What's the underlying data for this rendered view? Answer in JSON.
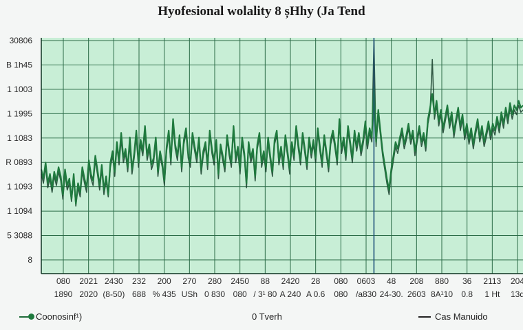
{
  "chart_data": {
    "type": "line",
    "title": "Hyofesional wolality 8 șHhy (Ja Tend",
    "xlabel": "",
    "ylabel": "",
    "y_tick_labels": [
      "30806",
      "B 1h45",
      "1 1003",
      "1 1995",
      "1 1083",
      "R 0893",
      "1 1093",
      "1 1094",
      "5 3088",
      "8"
    ],
    "x_tick_labels_row1": [
      "080",
      "2021",
      "2430",
      "232",
      "200",
      "270",
      "280",
      "2450",
      "88",
      "2420",
      "28",
      "080",
      "0603",
      "48",
      "208",
      "880",
      "36",
      "2113",
      "204"
    ],
    "x_tick_labels_row2": [
      "1890",
      "2020",
      "(8-50)",
      "688",
      "% 435",
      "USh",
      "0 830",
      "080",
      "/ 3¹ 80",
      "A 240",
      "A 0.6",
      "080",
      "/a830",
      "24-30.",
      "2603",
      "8A¹10",
      "0.8",
      "1 Ht",
      "13d"
    ],
    "grid": true,
    "legend_position": "bottom",
    "series": [
      {
        "name": "Coonosinf¹)",
        "color": "#1f7a3e",
        "values": [
          0.44,
          0.4,
          0.47,
          0.38,
          0.42,
          0.36,
          0.43,
          0.39,
          0.45,
          0.41,
          0.33,
          0.44,
          0.37,
          0.4,
          0.31,
          0.42,
          0.29,
          0.38,
          0.34,
          0.45,
          0.4,
          0.36,
          0.48,
          0.42,
          0.39,
          0.5,
          0.44,
          0.37,
          0.46,
          0.35,
          0.41,
          0.33,
          0.47,
          0.52,
          0.43,
          0.56,
          0.48,
          0.6,
          0.49,
          0.53,
          0.45,
          0.58,
          0.44,
          0.51,
          0.61,
          0.47,
          0.57,
          0.52,
          0.63,
          0.5,
          0.55,
          0.46,
          0.49,
          0.58,
          0.43,
          0.52,
          0.47,
          0.39,
          0.54,
          0.61,
          0.48,
          0.66,
          0.55,
          0.5,
          0.59,
          0.45,
          0.57,
          0.62,
          0.51,
          0.47,
          0.6,
          0.54,
          0.49,
          0.58,
          0.44,
          0.52,
          0.56,
          0.46,
          0.61,
          0.53,
          0.48,
          0.57,
          0.42,
          0.55,
          0.5,
          0.45,
          0.59,
          0.52,
          0.47,
          0.63,
          0.49,
          0.54,
          0.44,
          0.58,
          0.51,
          0.38,
          0.56,
          0.49,
          0.53,
          0.41,
          0.55,
          0.6,
          0.47,
          0.52,
          0.45,
          0.58,
          0.5,
          0.43,
          0.57,
          0.61,
          0.48,
          0.54,
          0.46,
          0.59,
          0.52,
          0.44,
          0.56,
          0.5,
          0.63,
          0.55,
          0.48,
          0.6,
          0.53,
          0.46,
          0.58,
          0.51,
          0.57,
          0.49,
          0.62,
          0.54,
          0.47,
          0.59,
          0.52,
          0.45,
          0.57,
          0.61,
          0.55,
          0.48,
          0.66,
          0.53,
          0.58,
          0.5,
          0.63,
          0.56,
          0.49,
          0.61,
          0.54,
          0.6,
          0.52,
          0.57,
          0.65,
          0.55,
          0.62,
          0.58,
          0.8,
          0.56,
          0.7,
          0.61,
          0.52,
          0.46,
          0.4,
          0.35,
          0.44,
          0.5,
          0.56,
          0.53,
          0.58,
          0.62,
          0.55,
          0.59,
          0.64,
          0.57,
          0.61,
          0.52,
          0.58,
          0.63,
          0.56,
          0.6,
          0.54,
          0.66,
          0.71,
          0.77,
          0.68,
          0.74,
          0.65,
          0.7,
          0.62,
          0.67,
          0.72,
          0.64,
          0.69,
          0.6,
          0.66,
          0.71,
          0.63,
          0.68,
          0.59,
          0.64,
          0.57,
          0.62,
          0.55,
          0.61,
          0.66,
          0.58,
          0.63,
          0.56,
          0.6,
          0.65,
          0.59,
          0.64,
          0.61,
          0.67,
          0.62,
          0.69,
          0.64,
          0.71,
          0.66,
          0.73,
          0.68,
          0.72,
          0.7,
          0.74,
          0.71,
          0.72
        ]
      },
      {
        "name": "Cas Manuido",
        "color": "#163d2a",
        "values": [
          0.42,
          0.38,
          0.45,
          0.36,
          0.4,
          0.34,
          0.41,
          0.37,
          0.43,
          0.39,
          0.31,
          0.42,
          0.35,
          0.38,
          0.3,
          0.4,
          0.28,
          0.36,
          0.32,
          0.43,
          0.38,
          0.34,
          0.46,
          0.4,
          0.37,
          0.48,
          0.42,
          0.35,
          0.44,
          0.33,
          0.39,
          0.32,
          0.45,
          0.5,
          0.41,
          0.54,
          0.46,
          0.57,
          0.47,
          0.51,
          0.43,
          0.55,
          0.42,
          0.49,
          0.58,
          0.45,
          0.55,
          0.5,
          0.6,
          0.48,
          0.53,
          0.44,
          0.47,
          0.56,
          0.41,
          0.5,
          0.45,
          0.37,
          0.52,
          0.59,
          0.46,
          0.63,
          0.53,
          0.48,
          0.57,
          0.43,
          0.55,
          0.6,
          0.49,
          0.45,
          0.58,
          0.52,
          0.47,
          0.56,
          0.42,
          0.5,
          0.54,
          0.44,
          0.59,
          0.51,
          0.46,
          0.55,
          0.4,
          0.53,
          0.48,
          0.43,
          0.57,
          0.5,
          0.45,
          0.61,
          0.47,
          0.52,
          0.42,
          0.56,
          0.49,
          0.36,
          0.54,
          0.47,
          0.51,
          0.39,
          0.53,
          0.58,
          0.45,
          0.5,
          0.43,
          0.56,
          0.48,
          0.41,
          0.55,
          0.59,
          0.46,
          0.52,
          0.44,
          0.57,
          0.5,
          0.42,
          0.54,
          0.48,
          0.61,
          0.53,
          0.46,
          0.58,
          0.51,
          0.44,
          0.56,
          0.49,
          0.55,
          0.47,
          0.6,
          0.52,
          0.45,
          0.57,
          0.5,
          0.43,
          0.55,
          0.59,
          0.53,
          0.46,
          0.64,
          0.51,
          0.56,
          0.48,
          0.61,
          0.54,
          0.47,
          0.59,
          0.52,
          0.58,
          0.5,
          0.55,
          0.62,
          0.53,
          0.6,
          0.56,
          1.0,
          0.54,
          0.68,
          0.59,
          0.5,
          0.44,
          0.38,
          0.33,
          0.42,
          0.48,
          0.54,
          0.51,
          0.56,
          0.6,
          0.53,
          0.57,
          0.62,
          0.55,
          0.59,
          0.5,
          0.56,
          0.61,
          0.54,
          0.58,
          0.52,
          0.64,
          0.69,
          0.92,
          0.66,
          0.72,
          0.63,
          0.68,
          0.6,
          0.65,
          0.7,
          0.62,
          0.67,
          0.58,
          0.64,
          0.69,
          0.61,
          0.66,
          0.57,
          0.62,
          0.55,
          0.6,
          0.53,
          0.59,
          0.64,
          0.56,
          0.61,
          0.54,
          0.58,
          0.63,
          0.57,
          0.62,
          0.59,
          0.65,
          0.6,
          0.67,
          0.62,
          0.69,
          0.64,
          0.71,
          0.66,
          0.7,
          0.68,
          0.72,
          0.69,
          0.7
        ]
      }
    ]
  },
  "legend": {
    "left_label": "Coonosinf¹)",
    "center_label": "0 Tverh",
    "right_label": "Cas Manuido"
  },
  "colors": {
    "plot_background": "#c8eed6",
    "grid": "#1f5c3a",
    "series_main": "#1f7a3e",
    "series_dark": "#163d2a",
    "spike": "#1e4f7a"
  }
}
